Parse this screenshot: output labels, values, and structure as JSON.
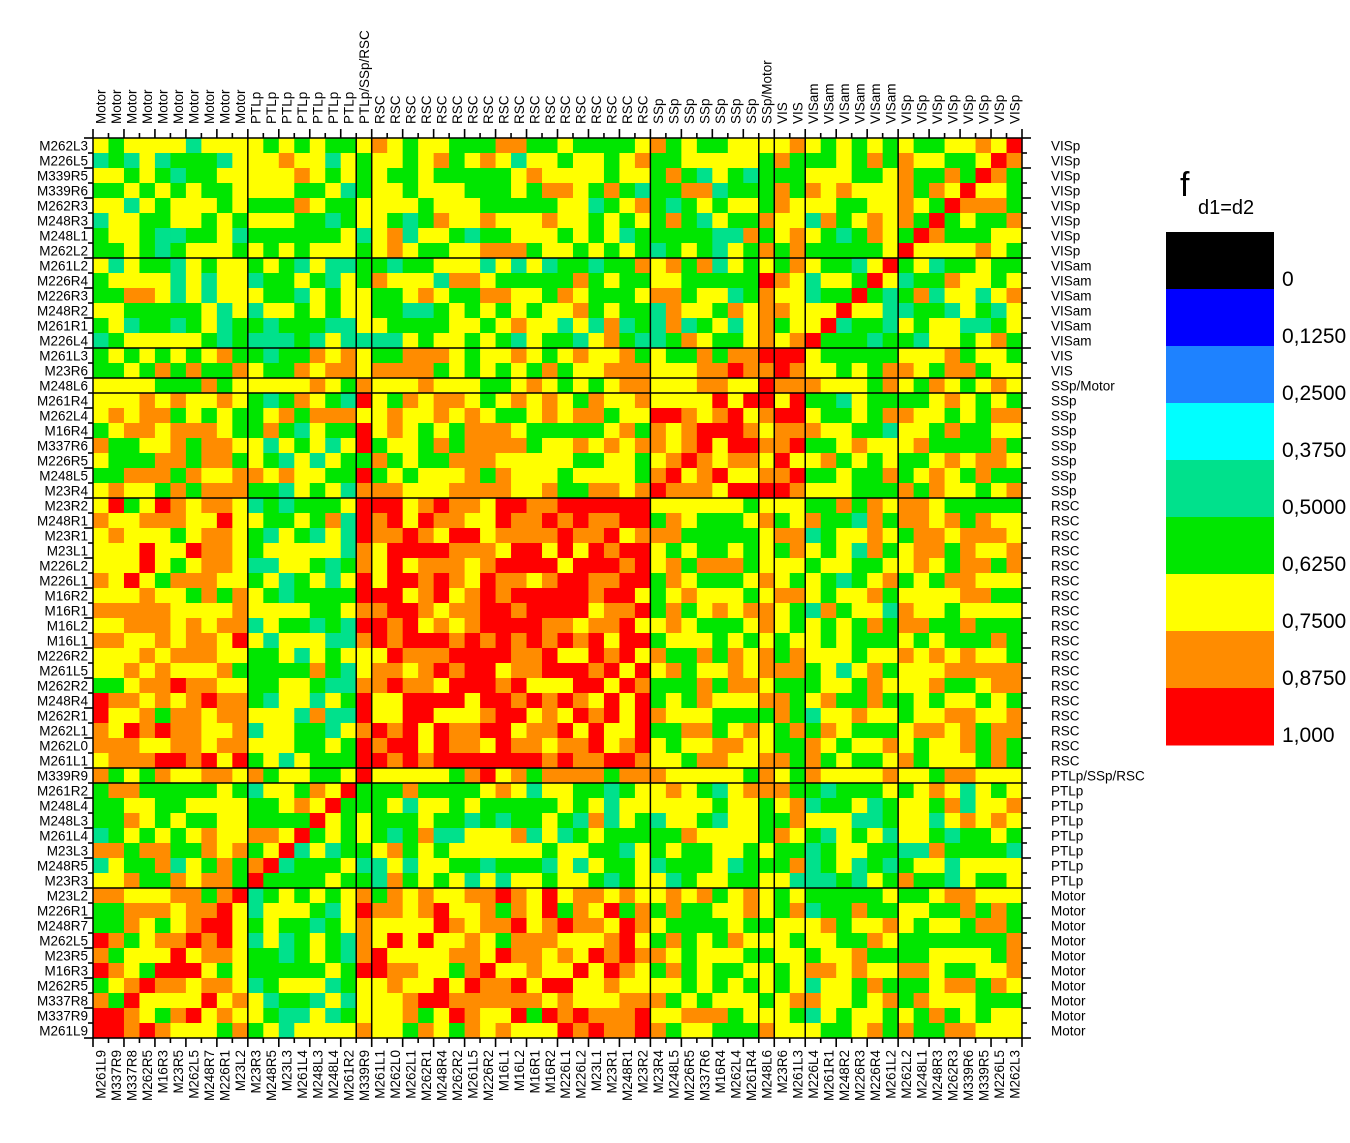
{
  "chart_data": {
    "type": "heatmap",
    "title": "",
    "legend": {
      "title_main": "f",
      "title_sub": "d1=d2",
      "tick_labels": [
        "0",
        "0,1250",
        "0,2500",
        "0,3750",
        "0,5000",
        "0,6250",
        "0,7500",
        "0,8750",
        "1,000"
      ],
      "colors": [
        "#000000",
        "#0000ff",
        "#1e82ff",
        "#00ffff",
        "#00e18c",
        "#00e600",
        "#ffff00",
        "#ff8c00",
        "#ff0000"
      ],
      "placement": "right"
    },
    "left_labels": [
      "M262L3",
      "M226L5",
      "M339R5",
      "M339R6",
      "M262R3",
      "M248R3",
      "M248L1",
      "M262L2",
      "M261L2",
      "M226R4",
      "M226R3",
      "M248R2",
      "M261R1",
      "M226L4",
      "M261L3",
      "M23R6",
      "M248L6",
      "M261R4",
      "M262L4",
      "M16R4",
      "M337R6",
      "M226R5",
      "M248L5",
      "M23R4",
      "M23R2",
      "M248R1",
      "M23R1",
      "M23L1",
      "M226L2",
      "M226L1",
      "M16R2",
      "M16R1",
      "M16L2",
      "M16L1",
      "M226R2",
      "M261L5",
      "M262R2",
      "M248R4",
      "M262R1",
      "M262L1",
      "M262L0",
      "M261L1",
      "M339R9",
      "M261R2",
      "M248L4",
      "M248L3",
      "M261L4",
      "M23L3",
      "M248R5",
      "M23R3",
      "M23L2",
      "M226R1",
      "M248R7",
      "M262L5",
      "M23R5",
      "M16R3",
      "M262R5",
      "M337R8",
      "M337R9",
      "M261L9"
    ],
    "right_labels": [
      "VISp",
      "VISp",
      "VISp",
      "VISp",
      "VISp",
      "VISp",
      "VISp",
      "VISp",
      "VISam",
      "VISam",
      "VISam",
      "VISam",
      "VISam",
      "VISam",
      "VIS",
      "VIS",
      "SSp/Motor",
      "SSp",
      "SSp",
      "SSp",
      "SSp",
      "SSp",
      "SSp",
      "SSp",
      "RSC",
      "RSC",
      "RSC",
      "RSC",
      "RSC",
      "RSC",
      "RSC",
      "RSC",
      "RSC",
      "RSC",
      "RSC",
      "RSC",
      "RSC",
      "RSC",
      "RSC",
      "RSC",
      "RSC",
      "RSC",
      "PTLp/SSp/RSC",
      "PTLp",
      "PTLp",
      "PTLp",
      "PTLp",
      "PTLp",
      "PTLp",
      "PTLp",
      "Motor",
      "Motor",
      "Motor",
      "Motor",
      "Motor",
      "Motor",
      "Motor",
      "Motor",
      "Motor",
      "Motor"
    ],
    "top_labels": [
      "Motor",
      "Motor",
      "Motor",
      "Motor",
      "Motor",
      "Motor",
      "Motor",
      "Motor",
      "Motor",
      "Motor",
      "PTLp",
      "PTLp",
      "PTLp",
      "PTLp",
      "PTLp",
      "PTLp",
      "PTLp",
      "PTLp/SSp/RSC",
      "RSC",
      "RSC",
      "RSC",
      "RSC",
      "RSC",
      "RSC",
      "RSC",
      "RSC",
      "RSC",
      "RSC",
      "RSC",
      "RSC",
      "RSC",
      "RSC",
      "RSC",
      "RSC",
      "RSC",
      "RSC",
      "SSp",
      "SSp",
      "SSp",
      "SSp",
      "SSp",
      "SSp",
      "SSp",
      "SSp/Motor",
      "VIS",
      "VIS",
      "VISam",
      "VISam",
      "VISam",
      "VISam",
      "VISam",
      "VISam",
      "VISp",
      "VISp",
      "VISp",
      "VISp",
      "VISp",
      "VISp",
      "VISp",
      "VISp"
    ],
    "bottom_labels": [
      "M261L9",
      "M337R9",
      "M337R8",
      "M262R5",
      "M16R3",
      "M23R5",
      "M262L5",
      "M248R7",
      "M226R1",
      "M23L2",
      "M23R3",
      "M248R5",
      "M23L3",
      "M261L4",
      "M248L3",
      "M248L4",
      "M261R2",
      "M339R9",
      "M261L1",
      "M262L0",
      "M262L1",
      "M262R1",
      "M248R4",
      "M262R2",
      "M261L5",
      "M226R2",
      "M16L1",
      "M16L2",
      "M16R1",
      "M16R2",
      "M226L1",
      "M226L2",
      "M23L1",
      "M23R1",
      "M248R1",
      "M23R2",
      "M23R4",
      "M248L5",
      "M226R5",
      "M337R6",
      "M16R4",
      "M262L4",
      "M261R4",
      "M248L6",
      "M23R6",
      "M261L3",
      "M226L4",
      "M261R1",
      "M248R2",
      "M226R3",
      "M226R4",
      "M261L2",
      "M262L2",
      "M248L1",
      "M248R3",
      "M262R3",
      "M339R6",
      "M339R5",
      "M226L5",
      "M262L3"
    ],
    "group_boundaries_rows": [
      8,
      14,
      16,
      17,
      24,
      42,
      43,
      50
    ],
    "group_boundaries_cols": [
      10,
      17,
      18,
      36,
      43,
      44,
      46,
      52
    ]
  }
}
